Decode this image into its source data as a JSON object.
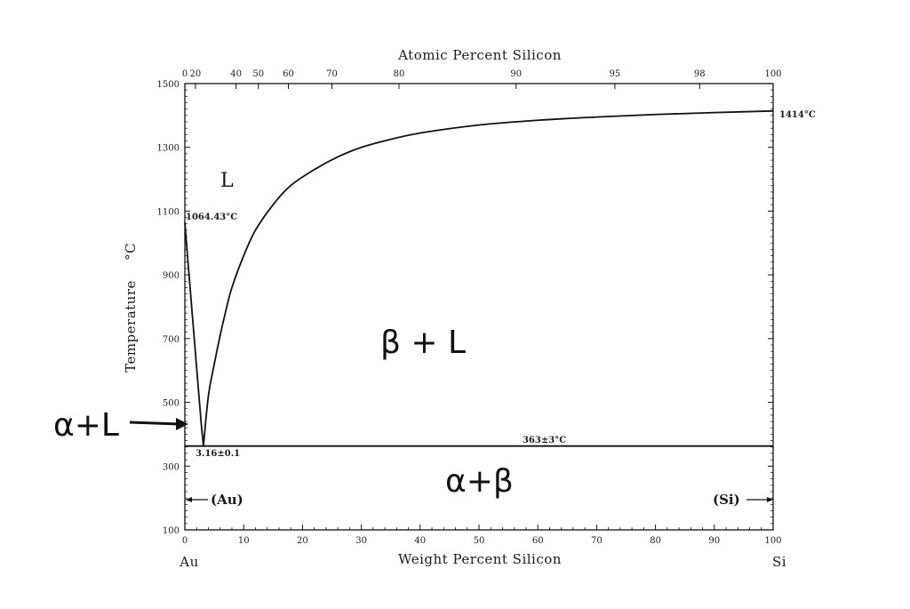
{
  "chart_data": {
    "type": "line",
    "title": "",
    "xlabel": "Weight Percent Silicon",
    "x2label": "Atomic Percent Silicon",
    "ylabel": "Temperature",
    "ylabel_unit": "°C",
    "xlim": [
      0,
      100
    ],
    "ylim": [
      100,
      1500
    ],
    "x_ticks": [
      0,
      10,
      20,
      30,
      40,
      50,
      60,
      70,
      80,
      90,
      100
    ],
    "y_ticks": [
      100,
      300,
      500,
      700,
      900,
      1100,
      1300,
      1500
    ],
    "top_ticks": [
      {
        "label": "0",
        "wt": 0
      },
      {
        "label": "20",
        "wt": 1.8
      },
      {
        "label": "40",
        "wt": 8.7
      },
      {
        "label": "50",
        "wt": 12.5
      },
      {
        "label": "60",
        "wt": 17.6
      },
      {
        "label": "70",
        "wt": 25.0
      },
      {
        "label": "80",
        "wt": 36.4
      },
      {
        "label": "90",
        "wt": 56.3
      },
      {
        "label": "95",
        "wt": 73.1
      },
      {
        "label": "98",
        "wt": 87.5
      },
      {
        "label": "100",
        "wt": 100
      }
    ],
    "series": [
      {
        "x": [
          0,
          0.4,
          0.8,
          1.2,
          1.6,
          2.0,
          2.4,
          2.8,
          3.16
        ],
        "y": [
          1064.43,
          970,
          880,
          790,
          700,
          610,
          520,
          430,
          363
        ]
      },
      {
        "x": [
          3.16,
          4,
          5,
          6,
          7,
          8,
          10,
          12,
          15,
          18,
          22,
          26,
          30,
          35,
          40,
          50,
          60,
          70,
          80,
          90,
          100
        ],
        "y": [
          363,
          520,
          620,
          710,
          790,
          860,
          960,
          1040,
          1120,
          1180,
          1230,
          1270,
          1300,
          1325,
          1345,
          1370,
          1385,
          1395,
          1403,
          1409,
          1414
        ]
      },
      {
        "x": [
          0,
          100
        ],
        "y": [
          363,
          363
        ]
      }
    ],
    "annotations": {
      "au_melt": "1064.43°C",
      "si_melt": "1414°C",
      "eutectic_temp": "363±3°C",
      "eutectic_comp": "3.16±0.1",
      "phase_L": "L",
      "phase_beta_L": "β + L",
      "phase_alpha_L": "α+L",
      "phase_alpha_beta": "α+β",
      "au_solid": "(Au)",
      "si_solid": "(Si)",
      "left_element": "Au",
      "right_element": "Si"
    }
  }
}
